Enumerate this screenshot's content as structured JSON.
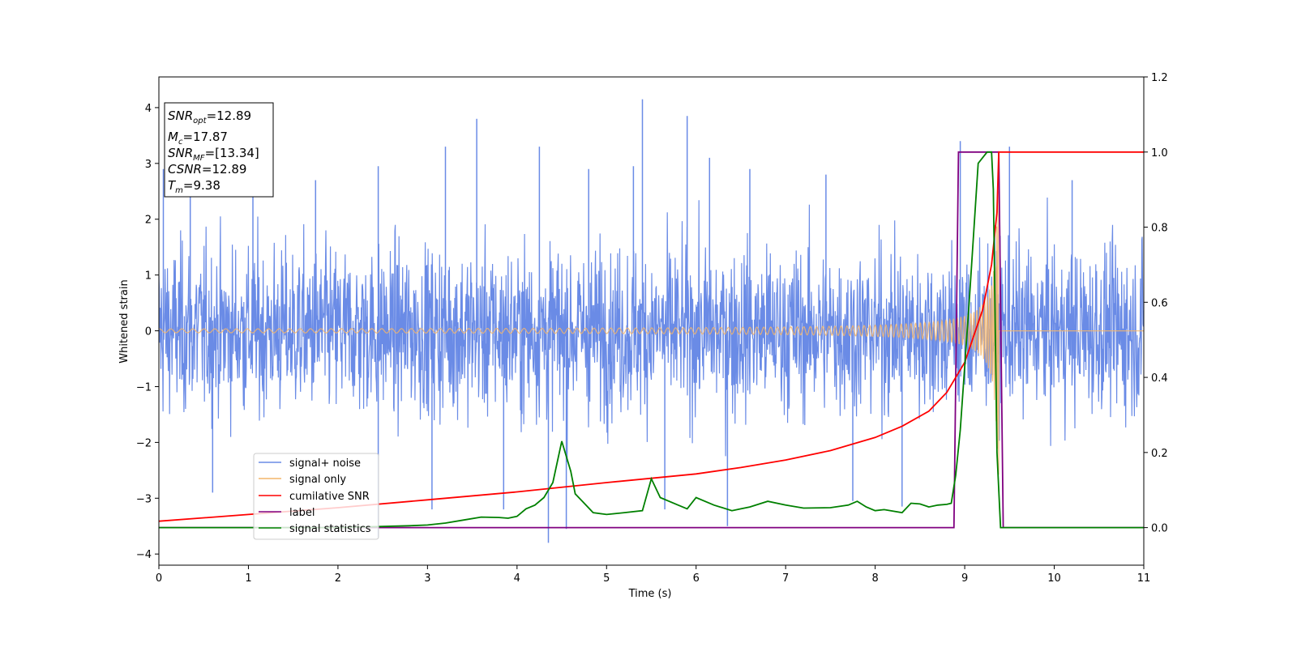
{
  "chart_data": {
    "type": "line",
    "xlabel": "Time (s)",
    "ylabel": "Whitened strain",
    "xlim": [
      0,
      11
    ],
    "ylim": [
      -4.2,
      4.55
    ],
    "y2lim": [
      -0.1,
      1.2
    ],
    "grid": false,
    "x_ticks": [
      "0",
      "1",
      "2",
      "3",
      "4",
      "5",
      "6",
      "7",
      "8",
      "9",
      "10",
      "11"
    ],
    "y_ticks": [
      "−4",
      "−3",
      "−2",
      "−1",
      "0",
      "1",
      "2",
      "3",
      "4"
    ],
    "y2_ticks": [
      "0.0",
      "0.2",
      "0.4",
      "0.6",
      "0.8",
      "1.0",
      "1.2"
    ],
    "legend_position": "lower-left",
    "colors": {
      "noise": "#6a8be6",
      "signal": "#f4b56a",
      "cumsnr": "#ff0000",
      "label": "#800080",
      "stats": "#008000"
    },
    "info_box": {
      "line1_base": "SNR",
      "line1_sub": "opt",
      "line1_value": "=12.89",
      "line2_base": "M",
      "line2_sub": "c",
      "line2_value": "=17.87",
      "line3_base": "SNR",
      "line3_sub": "MF",
      "line3_value": "=[13.34]",
      "line4_base": "CSNR",
      "line4_value": "=12.89",
      "line5_base": "T",
      "line5_sub": "m",
      "line5_value": "=9.38"
    },
    "series": [
      {
        "name": "signal+ noise",
        "axis": "left",
        "style": "noise-band",
        "envelope_x": [
          0,
          11
        ],
        "envelope_upper": [
          2.2,
          2.2
        ],
        "envelope_lower": [
          -2.2,
          -2.2
        ],
        "spikes": [
          {
            "x": 0.05,
            "y": 2.9
          },
          {
            "x": 0.35,
            "y": 2.5
          },
          {
            "x": 0.6,
            "y": -2.9
          },
          {
            "x": 1.05,
            "y": 2.5
          },
          {
            "x": 1.75,
            "y": 2.7
          },
          {
            "x": 2.45,
            "y": 2.95
          },
          {
            "x": 2.45,
            "y": -3.7
          },
          {
            "x": 3.05,
            "y": -3.2
          },
          {
            "x": 3.2,
            "y": 3.3
          },
          {
            "x": 3.55,
            "y": 3.8
          },
          {
            "x": 3.85,
            "y": -3.2
          },
          {
            "x": 4.25,
            "y": 3.3
          },
          {
            "x": 4.35,
            "y": -3.8
          },
          {
            "x": 4.55,
            "y": -3.55
          },
          {
            "x": 4.8,
            "y": 2.9
          },
          {
            "x": 5.3,
            "y": 2.95
          },
          {
            "x": 5.4,
            "y": 4.15
          },
          {
            "x": 5.65,
            "y": -3.2
          },
          {
            "x": 5.9,
            "y": 3.85
          },
          {
            "x": 6.15,
            "y": 3.1
          },
          {
            "x": 6.35,
            "y": -3.5
          },
          {
            "x": 6.6,
            "y": 2.9
          },
          {
            "x": 7.45,
            "y": 2.8
          },
          {
            "x": 7.75,
            "y": -3.05
          },
          {
            "x": 8.3,
            "y": -3.15
          },
          {
            "x": 8.95,
            "y": 3.4
          },
          {
            "x": 9.5,
            "y": 3.3
          },
          {
            "x": 10.2,
            "y": 2.7
          }
        ]
      },
      {
        "name": "signal only",
        "axis": "left",
        "style": "chirp",
        "merger_time": 9.38,
        "peak_amplitude": 2.6,
        "start_amplitude": 0.02
      },
      {
        "name": "cumilative SNR",
        "axis": "right",
        "x": [
          0,
          1,
          2,
          3,
          4,
          5,
          6,
          6.5,
          7,
          7.5,
          8,
          8.3,
          8.6,
          8.8,
          9.0,
          9.2,
          9.3,
          9.36,
          9.38,
          9.4,
          11
        ],
        "y": [
          0.017,
          0.035,
          0.053,
          0.074,
          0.095,
          0.12,
          0.143,
          0.16,
          0.18,
          0.205,
          0.24,
          0.27,
          0.31,
          0.36,
          0.44,
          0.58,
          0.7,
          0.84,
          1.0,
          1.0,
          1.0
        ]
      },
      {
        "name": "label",
        "axis": "right",
        "x": [
          0,
          8.88,
          8.93,
          9.38,
          9.43,
          11
        ],
        "y": [
          0,
          0,
          1,
          1,
          0,
          0
        ]
      },
      {
        "name": "signal statistics",
        "axis": "right",
        "x": [
          0,
          0.5,
          1,
          1.5,
          2,
          2.5,
          2.8,
          3.0,
          3.2,
          3.4,
          3.6,
          3.8,
          3.9,
          4.0,
          4.1,
          4.2,
          4.3,
          4.4,
          4.5,
          4.6,
          4.65,
          4.75,
          4.85,
          5.0,
          5.2,
          5.4,
          5.5,
          5.6,
          5.8,
          5.9,
          6.0,
          6.2,
          6.4,
          6.5,
          6.6,
          6.8,
          7.0,
          7.2,
          7.5,
          7.7,
          7.8,
          7.9,
          8.0,
          8.1,
          8.3,
          8.4,
          8.5,
          8.6,
          8.7,
          8.8,
          8.85,
          8.9,
          8.95,
          9.05,
          9.15,
          9.25,
          9.3,
          9.32,
          9.36,
          9.4,
          9.45,
          9.6,
          11
        ],
        "y": [
          0,
          0,
          0,
          0,
          0,
          0.003,
          0.005,
          0.007,
          0.012,
          0.02,
          0.028,
          0.027,
          0.025,
          0.03,
          0.05,
          0.06,
          0.08,
          0.12,
          0.23,
          0.15,
          0.09,
          0.065,
          0.04,
          0.035,
          0.04,
          0.045,
          0.13,
          0.08,
          0.06,
          0.05,
          0.08,
          0.06,
          0.045,
          0.05,
          0.055,
          0.07,
          0.06,
          0.052,
          0.053,
          0.06,
          0.07,
          0.055,
          0.045,
          0.048,
          0.04,
          0.065,
          0.063,
          0.055,
          0.06,
          0.062,
          0.065,
          0.14,
          0.26,
          0.6,
          0.97,
          1.0,
          1.0,
          0.9,
          0.2,
          0.0,
          0.0,
          0.0,
          0.0
        ]
      }
    ]
  }
}
